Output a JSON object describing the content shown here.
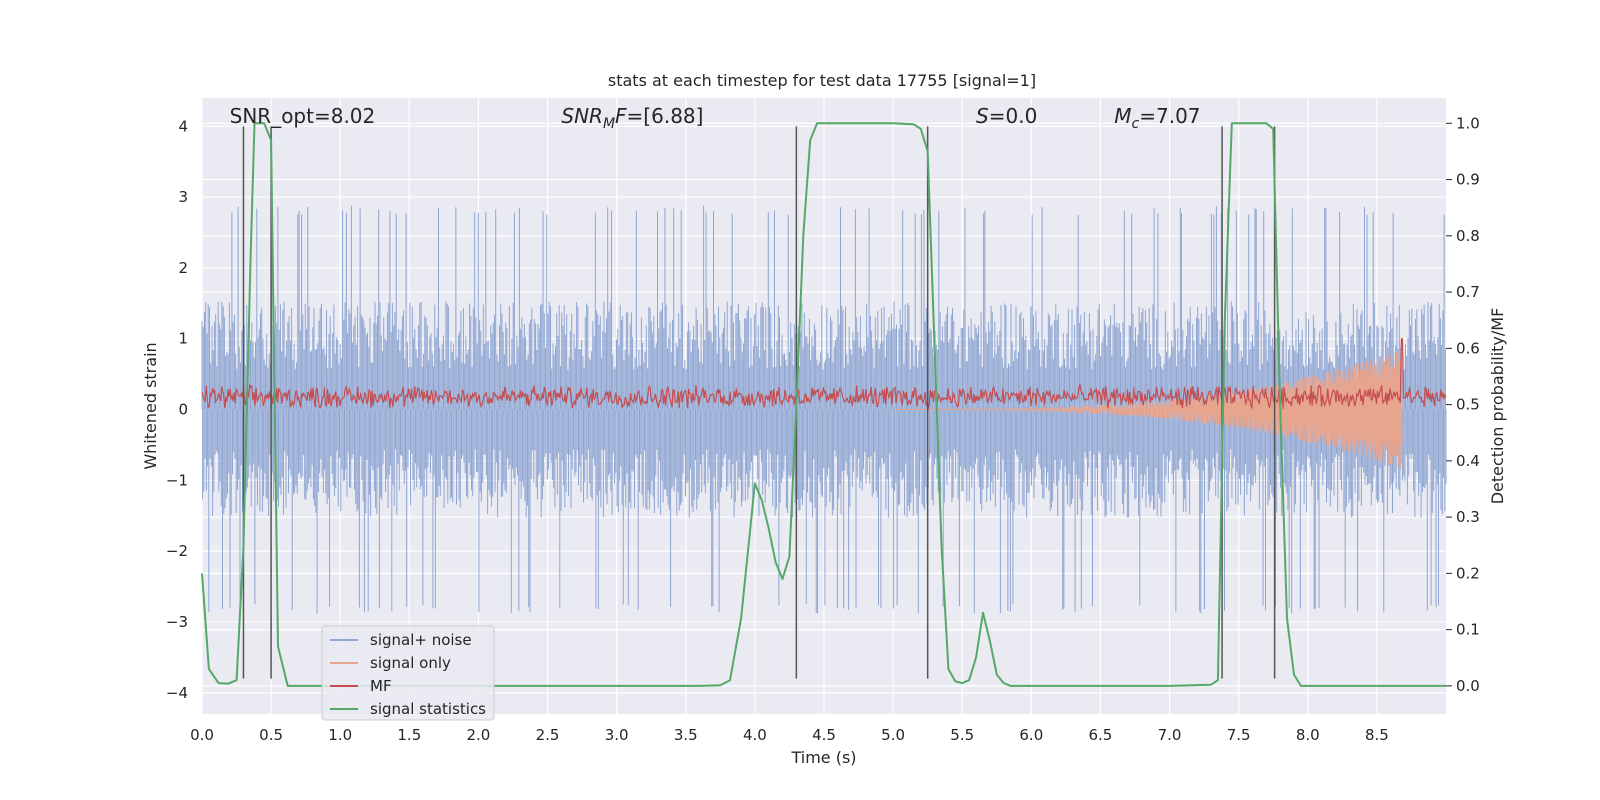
{
  "chart_data": {
    "type": "line",
    "title": "stats at each timestep for test data 17755 [signal=1]",
    "xlabel": "Time (s)",
    "ylabel": "Whitened strain",
    "y2label": "Detection probability/MF",
    "xlim": [
      0.0,
      9.0
    ],
    "ylim": [
      -4.3,
      4.4
    ],
    "y2lim": [
      -0.05,
      1.045
    ],
    "xticks": [
      "0.0",
      "0.5",
      "1.0",
      "1.5",
      "2.0",
      "2.5",
      "3.0",
      "3.5",
      "4.0",
      "4.5",
      "5.0",
      "5.5",
      "6.0",
      "6.5",
      "7.0",
      "7.5",
      "8.0",
      "8.5"
    ],
    "yticks": [
      "4",
      "3",
      "2",
      "1",
      "0",
      "−1",
      "−2",
      "−3",
      "−4"
    ],
    "y2ticks": [
      "1.0",
      "0.9",
      "0.8",
      "0.7",
      "0.6",
      "0.5",
      "0.4",
      "0.3",
      "0.2",
      "0.1",
      "0.0"
    ],
    "grid": true,
    "legend_position": "lower-left",
    "annotations": [
      {
        "id": "snr-opt",
        "text": "SNR_opt=8.02",
        "x": 0.2,
        "y": 4.05
      },
      {
        "id": "snr-mf",
        "text": "SNR_MF=[6.88]",
        "x": 2.6,
        "y": 4.05
      },
      {
        "id": "s",
        "text": "S=0.0",
        "x": 5.6,
        "y": 4.05
      },
      {
        "id": "mc",
        "text": "M_c=7.07",
        "x": 6.6,
        "y": 4.05
      }
    ],
    "vertical_lines": [
      {
        "x": 0.3,
        "ymin": -3.8,
        "ymax": 4.0
      },
      {
        "x": 0.5,
        "ymin": -3.8,
        "ymax": 4.0
      },
      {
        "x": 4.3,
        "ymin": -3.8,
        "ymax": 4.0
      },
      {
        "x": 5.25,
        "ymin": -3.8,
        "ymax": 4.0
      },
      {
        "x": 7.38,
        "ymin": -3.8,
        "ymax": 4.0
      },
      {
        "x": 7.76,
        "ymin": -3.8,
        "ymax": 4.0
      }
    ],
    "series": [
      {
        "name": "signal+ noise",
        "color": "#8fa6d2",
        "axis": "left",
        "style": "noise band",
        "typical_range": [
          -1.5,
          1.6
        ],
        "peak_range": [
          -3.8,
          3.3
        ]
      },
      {
        "name": "signal only",
        "color": "#e8a58e",
        "axis": "left",
        "style": "chirp",
        "start_x": 5.0,
        "end_x": 8.68,
        "peak_amplitude": 0.85
      },
      {
        "name": "MF",
        "color": "#c44e52",
        "axis": "left",
        "style": "noise band",
        "typical_range": [
          0.0,
          0.45
        ],
        "peak": {
          "x": 8.68,
          "y": 1.0
        }
      },
      {
        "name": "signal statistics",
        "color": "#55a868",
        "axis": "right",
        "x": [
          0.0,
          0.05,
          0.12,
          0.19,
          0.25,
          0.3,
          0.35,
          0.38,
          0.45,
          0.5,
          0.55,
          0.62,
          0.7,
          1.0,
          2.0,
          3.0,
          3.6,
          3.75,
          3.82,
          3.9,
          4.0,
          4.05,
          4.1,
          4.15,
          4.2,
          4.25,
          4.3,
          4.35,
          4.4,
          4.45,
          4.5,
          5.0,
          5.15,
          5.2,
          5.25,
          5.3,
          5.35,
          5.4,
          5.45,
          5.5,
          5.55,
          5.6,
          5.65,
          5.7,
          5.75,
          5.8,
          5.85,
          5.9,
          6.5,
          7.0,
          7.3,
          7.35,
          7.4,
          7.45,
          7.5,
          7.6,
          7.7,
          7.75,
          7.8,
          7.85,
          7.9,
          7.95,
          8.0,
          8.5,
          9.0
        ],
        "y": [
          0.2,
          0.03,
          0.005,
          0.004,
          0.01,
          0.25,
          0.75,
          1.0,
          1.0,
          0.97,
          0.07,
          0.0,
          0.0,
          0.0,
          0.0,
          0.0,
          0.0,
          0.001,
          0.01,
          0.12,
          0.36,
          0.33,
          0.28,
          0.22,
          0.19,
          0.23,
          0.5,
          0.8,
          0.97,
          1.0,
          1.0,
          1.0,
          0.998,
          0.99,
          0.95,
          0.6,
          0.25,
          0.03,
          0.008,
          0.005,
          0.01,
          0.05,
          0.13,
          0.08,
          0.02,
          0.005,
          0.0,
          0.0,
          0.0,
          0.0,
          0.002,
          0.01,
          0.65,
          1.0,
          1.0,
          1.0,
          1.0,
          0.99,
          0.5,
          0.12,
          0.02,
          0.0,
          0.0,
          0.0,
          0.0
        ]
      }
    ]
  }
}
